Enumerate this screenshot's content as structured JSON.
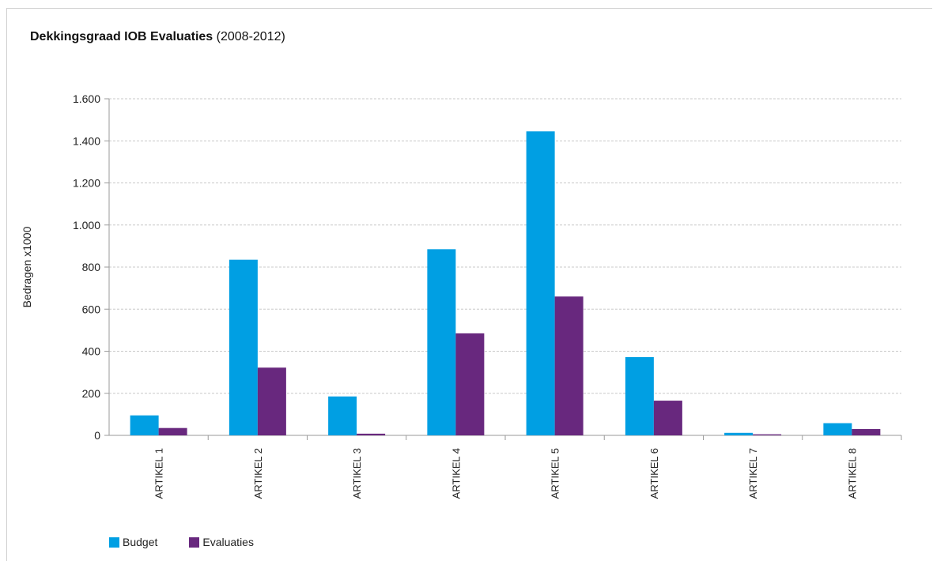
{
  "chart_data": {
    "type": "bar",
    "title_bold": "Dekkingsgraad IOB Evaluaties",
    "title_rest": " (2008-2012)",
    "ylabel": "Bedragen x1000",
    "xlabel": "",
    "categories": [
      "ARTIKEL 1",
      "ARTIKEL 2",
      "ARTIKEL 3",
      "ARTIKEL 4",
      "ARTIKEL 5",
      "ARTIKEL 6",
      "ARTIKEL 7",
      "ARTIKEL 8"
    ],
    "series": [
      {
        "name": "Budget",
        "color": "#009fe3",
        "values": [
          95,
          835,
          185,
          885,
          1445,
          372,
          12,
          58
        ]
      },
      {
        "name": "Evaluaties",
        "color": "#68287e",
        "values": [
          35,
          322,
          8,
          485,
          660,
          165,
          5,
          30
        ]
      }
    ],
    "ylim": [
      0,
      1600
    ],
    "yticks": [
      0,
      200,
      400,
      600,
      800,
      1000,
      1200,
      1400,
      1600
    ],
    "ytick_labels": [
      "0",
      "200",
      "400",
      "600",
      "800",
      "1.000",
      "1.200",
      "1.400",
      "1.600"
    ],
    "grid": true,
    "legend": "bottom-left"
  }
}
